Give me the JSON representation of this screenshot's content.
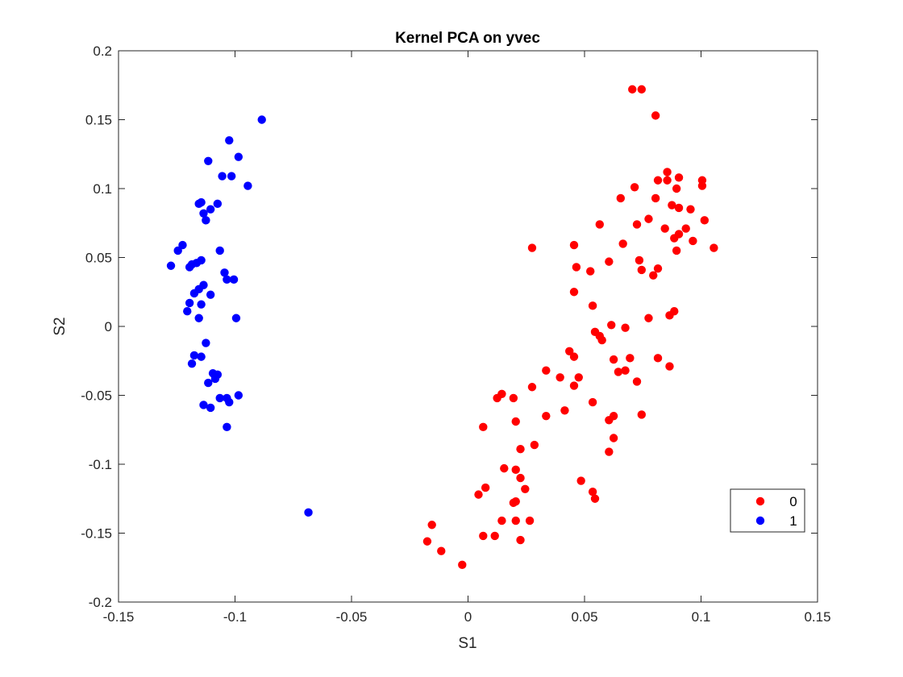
{
  "chart_data": {
    "type": "scatter",
    "title": "Kernel PCA on yvec",
    "xlabel": "S1",
    "ylabel": "S2",
    "xlim": [
      -0.15,
      0.15
    ],
    "ylim": [
      -0.2,
      0.2
    ],
    "xticks": [
      -0.15,
      -0.1,
      -0.05,
      0,
      0.05,
      0.1,
      0.15
    ],
    "xtick_labels": [
      "-0.15",
      "-0.1",
      "-0.05",
      "0",
      "0.05",
      "0.1",
      "0.15"
    ],
    "yticks": [
      -0.2,
      -0.15,
      -0.1,
      -0.05,
      0,
      0.05,
      0.1,
      0.15,
      0.2
    ],
    "ytick_labels": [
      "-0.2",
      "-0.15",
      "-0.1",
      "-0.05",
      "0",
      "0.05",
      "0.1",
      "0.15",
      "0.2"
    ],
    "grid": false,
    "legend_position": "bottom-right",
    "series": [
      {
        "name": "0",
        "color": "#ff0000",
        "points": [
          [
            0.0705,
            0.172
          ],
          [
            0.0745,
            0.172
          ],
          [
            0.0805,
            0.153
          ],
          [
            0.0855,
            0.112
          ],
          [
            0.0905,
            0.108
          ],
          [
            0.1005,
            0.106
          ],
          [
            0.0815,
            0.106
          ],
          [
            0.0855,
            0.106
          ],
          [
            0.0715,
            0.101
          ],
          [
            0.0895,
            0.1
          ],
          [
            0.1005,
            0.102
          ],
          [
            0.0905,
            0.086
          ],
          [
            0.0955,
            0.085
          ],
          [
            0.0655,
            0.093
          ],
          [
            0.0805,
            0.093
          ],
          [
            0.0875,
            0.088
          ],
          [
            0.0775,
            0.078
          ],
          [
            0.1015,
            0.077
          ],
          [
            0.0565,
            0.074
          ],
          [
            0.0725,
            0.074
          ],
          [
            0.0845,
            0.071
          ],
          [
            0.0935,
            0.071
          ],
          [
            0.0905,
            0.067
          ],
          [
            0.0885,
            0.064
          ],
          [
            0.0965,
            0.062
          ],
          [
            0.0665,
            0.06
          ],
          [
            0.0455,
            0.059
          ],
          [
            0.1055,
            0.057
          ],
          [
            0.0275,
            0.057
          ],
          [
            0.0895,
            0.055
          ],
          [
            0.0735,
            0.048
          ],
          [
            0.0605,
            0.047
          ],
          [
            0.0465,
            0.043
          ],
          [
            0.0815,
            0.042
          ],
          [
            0.0745,
            0.041
          ],
          [
            0.0525,
            0.04
          ],
          [
            0.0795,
            0.037
          ],
          [
            0.0455,
            0.025
          ],
          [
            0.0535,
            0.015
          ],
          [
            0.0885,
            0.011
          ],
          [
            0.0865,
            0.008
          ],
          [
            0.0775,
            0.006
          ],
          [
            0.0615,
            0.001
          ],
          [
            0.0675,
            -0.001
          ],
          [
            0.0545,
            -0.004
          ],
          [
            0.0565,
            -0.007
          ],
          [
            0.0575,
            -0.01
          ],
          [
            0.0435,
            -0.018
          ],
          [
            0.0455,
            -0.022
          ],
          [
            0.0625,
            -0.024
          ],
          [
            0.0695,
            -0.023
          ],
          [
            0.0815,
            -0.023
          ],
          [
            0.0335,
            -0.032
          ],
          [
            0.0645,
            -0.033
          ],
          [
            0.0675,
            -0.032
          ],
          [
            0.0865,
            -0.029
          ],
          [
            0.0395,
            -0.037
          ],
          [
            0.0475,
            -0.037
          ],
          [
            0.0725,
            -0.04
          ],
          [
            0.0455,
            -0.043
          ],
          [
            0.0275,
            -0.044
          ],
          [
            0.0145,
            -0.049
          ],
          [
            0.0125,
            -0.052
          ],
          [
            0.0195,
            -0.052
          ],
          [
            0.0535,
            -0.055
          ],
          [
            0.0415,
            -0.061
          ],
          [
            0.0745,
            -0.064
          ],
          [
            0.0335,
            -0.065
          ],
          [
            0.0625,
            -0.065
          ],
          [
            0.0605,
            -0.068
          ],
          [
            0.0205,
            -0.069
          ],
          [
            0.0065,
            -0.073
          ],
          [
            0.0625,
            -0.081
          ],
          [
            0.0285,
            -0.086
          ],
          [
            0.0225,
            -0.089
          ],
          [
            0.0605,
            -0.091
          ],
          [
            0.0155,
            -0.103
          ],
          [
            0.0205,
            -0.104
          ],
          [
            0.0225,
            -0.11
          ],
          [
            0.0485,
            -0.112
          ],
          [
            0.0075,
            -0.117
          ],
          [
            0.0245,
            -0.118
          ],
          [
            0.0535,
            -0.12
          ],
          [
            0.0045,
            -0.122
          ],
          [
            0.0545,
            -0.125
          ],
          [
            0.0195,
            -0.128
          ],
          [
            0.0205,
            -0.127
          ],
          [
            0.0145,
            -0.141
          ],
          [
            0.0205,
            -0.141
          ],
          [
            0.0265,
            -0.141
          ],
          [
            -0.0155,
            -0.144
          ],
          [
            0.0065,
            -0.152
          ],
          [
            0.0115,
            -0.152
          ],
          [
            0.0225,
            -0.155
          ],
          [
            -0.0175,
            -0.156
          ],
          [
            -0.0115,
            -0.163
          ],
          [
            -0.0025,
            -0.173
          ]
        ]
      },
      {
        "name": "1",
        "color": "#0000ff",
        "points": [
          [
            -0.0885,
            0.15
          ],
          [
            -0.1025,
            0.135
          ],
          [
            -0.0985,
            0.123
          ],
          [
            -0.1115,
            0.12
          ],
          [
            -0.1055,
            0.109
          ],
          [
            -0.1015,
            0.109
          ],
          [
            -0.0945,
            0.102
          ],
          [
            -0.1155,
            0.089
          ],
          [
            -0.1145,
            0.09
          ],
          [
            -0.1075,
            0.089
          ],
          [
            -0.1105,
            0.085
          ],
          [
            -0.1135,
            0.082
          ],
          [
            -0.1125,
            0.077
          ],
          [
            -0.1225,
            0.059
          ],
          [
            -0.1245,
            0.055
          ],
          [
            -0.1065,
            0.055
          ],
          [
            -0.1145,
            0.048
          ],
          [
            -0.1185,
            0.045
          ],
          [
            -0.1165,
            0.046
          ],
          [
            -0.1275,
            0.044
          ],
          [
            -0.1195,
            0.043
          ],
          [
            -0.1045,
            0.039
          ],
          [
            -0.1005,
            0.034
          ],
          [
            -0.1035,
            0.034
          ],
          [
            -0.1135,
            0.03
          ],
          [
            -0.1155,
            0.027
          ],
          [
            -0.1175,
            0.024
          ],
          [
            -0.1105,
            0.023
          ],
          [
            -0.1195,
            0.017
          ],
          [
            -0.1145,
            0.016
          ],
          [
            -0.1205,
            0.011
          ],
          [
            -0.1155,
            0.006
          ],
          [
            -0.0995,
            0.006
          ],
          [
            -0.1125,
            -0.012
          ],
          [
            -0.1175,
            -0.021
          ],
          [
            -0.1145,
            -0.022
          ],
          [
            -0.1185,
            -0.027
          ],
          [
            -0.1095,
            -0.034
          ],
          [
            -0.1075,
            -0.035
          ],
          [
            -0.1085,
            -0.038
          ],
          [
            -0.1115,
            -0.041
          ],
          [
            -0.0985,
            -0.05
          ],
          [
            -0.1065,
            -0.052
          ],
          [
            -0.1035,
            -0.052
          ],
          [
            -0.1025,
            -0.055
          ],
          [
            -0.1135,
            -0.057
          ],
          [
            -0.1105,
            -0.059
          ],
          [
            -0.1035,
            -0.073
          ],
          [
            -0.0685,
            -0.135
          ]
        ]
      }
    ]
  }
}
